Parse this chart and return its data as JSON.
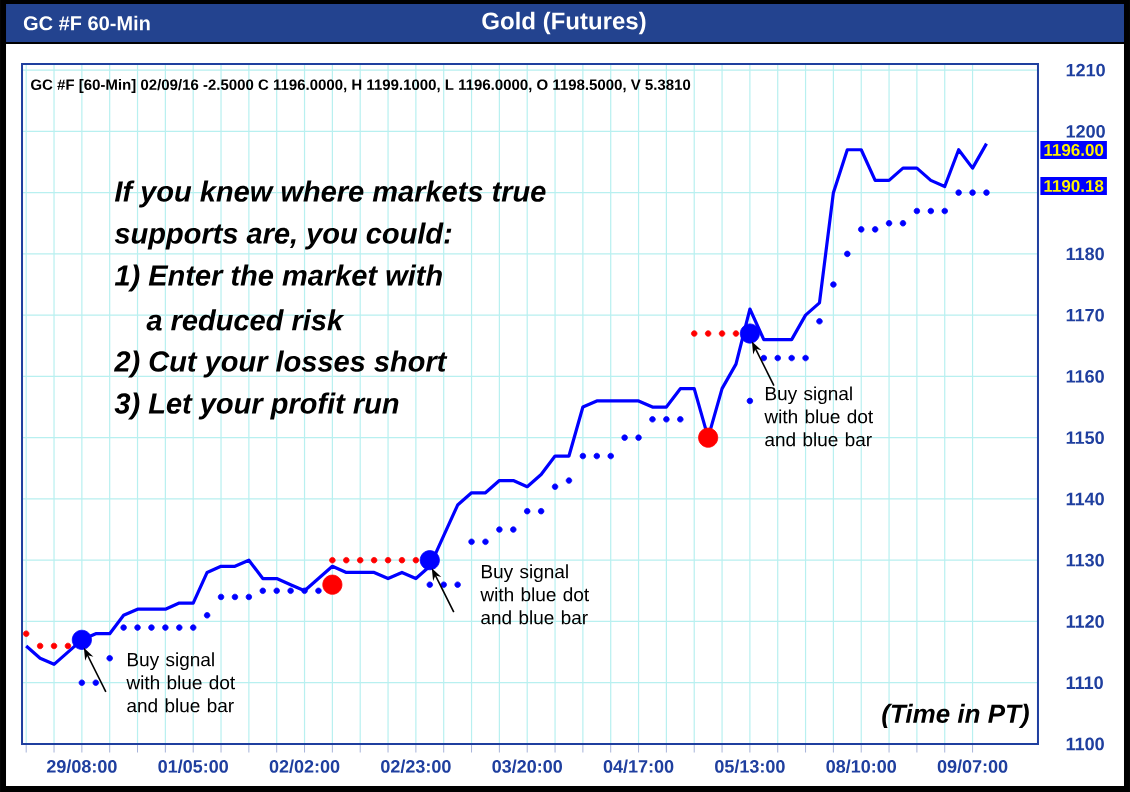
{
  "chart_data": {
    "type": "line",
    "title": "Gold (Futures)",
    "subtitle": "GC #F 60-Min",
    "categories": [
      null,
      null,
      null,
      null,
      "29/08:00",
      null,
      null,
      null,
      null,
      null,
      null,
      null,
      "01/05:00",
      null,
      null,
      null,
      null,
      null,
      null,
      null,
      "02/02:00",
      null,
      null,
      null,
      null,
      null,
      null,
      null,
      "02/23:00",
      null,
      null,
      null,
      null,
      null,
      null,
      null,
      "03/20:00",
      null,
      null,
      null,
      null,
      null,
      null,
      null,
      "04/17:00",
      null,
      null,
      null,
      null,
      null,
      null,
      null,
      "05/13:00",
      null,
      null,
      null,
      null,
      null,
      null,
      null,
      "08/10:00",
      null,
      null,
      null,
      null,
      null,
      null,
      null,
      "09/07:00",
      null
    ],
    "series": [
      {
        "color": "#0000ff",
        "marker": "none",
        "values": [
          1116,
          1114,
          1113,
          1115,
          1117,
          1118,
          1118,
          1121,
          1122,
          1122,
          1122,
          1123,
          1123,
          1128,
          1129,
          1129,
          1130,
          1127,
          1127,
          1126,
          1125,
          1127,
          1129,
          1128,
          1128,
          1128,
          1127,
          1128,
          1127,
          1129,
          1134,
          1139,
          1141,
          1141,
          1143,
          1143,
          1142,
          1144,
          1147,
          1147,
          1155,
          1156,
          1156,
          1156,
          1156,
          1155,
          1155,
          1158,
          1158,
          1150,
          1158,
          1162,
          1171,
          1166,
          1166,
          1166,
          1170,
          1172,
          1190,
          1197,
          1197,
          1192,
          1192,
          1194,
          1194,
          1192,
          1191,
          1197,
          1194,
          1198
        ]
      },
      {
        "type": "scatter",
        "color": "#0000ff",
        "marker": "circle",
        "values": [
          null,
          null,
          null,
          null,
          1110,
          1110,
          1114,
          1119,
          1119,
          1119,
          1119,
          1119,
          1119,
          1121,
          1124,
          1124,
          1124,
          1125,
          1125,
          1125,
          1125,
          1125,
          null,
          null,
          null,
          null,
          null,
          null,
          null,
          1126,
          1126,
          1126,
          1133,
          1133,
          1135,
          1135,
          1138,
          1138,
          1142,
          1143,
          1147,
          1147,
          1147,
          1150,
          1150,
          1153,
          1153,
          1153,
          null,
          null,
          null,
          null,
          1156,
          1163,
          1163,
          1163,
          1163,
          1169,
          1175,
          1180,
          1184,
          1184,
          1185,
          1185,
          1187,
          1187,
          1187,
          1190,
          1190,
          1190
        ]
      },
      {
        "type": "scatter",
        "color": "#ff0000",
        "marker": "circle",
        "values": [
          1118,
          1116,
          1116,
          1116,
          null,
          null,
          null,
          null,
          null,
          null,
          null,
          null,
          null,
          null,
          null,
          null,
          null,
          null,
          null,
          null,
          null,
          null,
          1130,
          1130,
          1130,
          1130,
          1130,
          1130,
          1130,
          null,
          null,
          null,
          null,
          null,
          null,
          null,
          null,
          null,
          null,
          null,
          null,
          null,
          null,
          null,
          null,
          null,
          null,
          null,
          1167,
          1167,
          1167,
          1167,
          null,
          null,
          null,
          null,
          null,
          null,
          null,
          null,
          null,
          null,
          null,
          null,
          null,
          null,
          null,
          null,
          null,
          null
        ]
      },
      {
        "type": "scatter",
        "color": "#0000ff",
        "marker": "circle",
        "values": [
          null,
          null,
          null,
          null,
          1117,
          null,
          null,
          null,
          null,
          null,
          null,
          null,
          null,
          null,
          null,
          null,
          null,
          null,
          null,
          null,
          null,
          null,
          null,
          null,
          null,
          null,
          null,
          null,
          null,
          1130,
          null,
          null,
          null,
          null,
          null,
          null,
          null,
          null,
          null,
          null,
          null,
          null,
          null,
          null,
          null,
          null,
          null,
          null,
          null,
          null,
          null,
          null,
          1167,
          null,
          null,
          null,
          null,
          null,
          null,
          null,
          null,
          null,
          null,
          null,
          null,
          null,
          null,
          null,
          null,
          null
        ]
      },
      {
        "type": "scatter",
        "color": "#ff0000",
        "marker": "circle",
        "values": [
          null,
          null,
          null,
          null,
          null,
          null,
          null,
          null,
          null,
          null,
          null,
          null,
          null,
          null,
          null,
          null,
          null,
          null,
          null,
          null,
          null,
          null,
          1126,
          null,
          null,
          null,
          null,
          null,
          null,
          null,
          null,
          null,
          null,
          null,
          null,
          null,
          null,
          null,
          null,
          null,
          null,
          null,
          null,
          null,
          null,
          null,
          null,
          null,
          null,
          1150,
          null,
          null,
          null,
          null,
          null,
          null,
          null,
          null,
          null,
          null,
          null,
          null,
          null,
          null,
          null,
          null,
          null,
          null,
          null,
          null
        ]
      }
    ],
    "ylim": [
      1100,
      1211
    ],
    "yticks": [
      1100,
      1110,
      1120,
      1130,
      1140,
      1150,
      1160,
      1170,
      1180,
      {
        "value": 1190,
        "label": null
      },
      1200,
      1210
    ],
    "grid": true,
    "annotations": [
      "GC #F [60-Min] 02/09/16  -2.5000 C 1196.0000, H 1199.1000, L 1196.0000, O 1198.5000, V 5.3810",
      "If you knew where markets true",
      "supports are, you could:",
      "1) Enter the market with",
      "a reduced risk",
      "2) Cut your losses short",
      "3) Let your profit run",
      "Buy signal with blue dot and blue bar",
      "Buy signal with blue dot and blue bar",
      "Buy signal with blue dot and blue bar",
      "(Time in PT)",
      "1196.00",
      "1190.18"
    ]
  }
}
